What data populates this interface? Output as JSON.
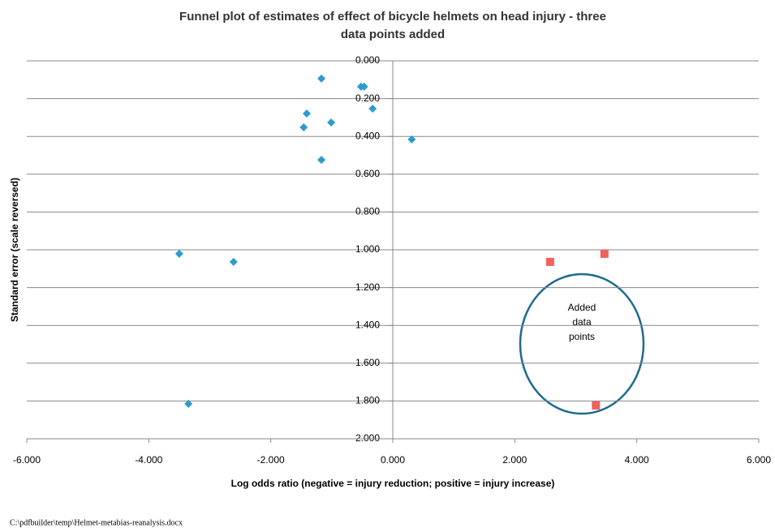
{
  "chart_data": {
    "type": "scatter",
    "title": [
      "Funnel plot of estimates of effect  of bicycle helmets on head injury - three",
      "data points added"
    ],
    "x_label": "Log odds ratio (negative = injury reduction; positive = injury increase)",
    "y_label": "Standard error (scale reversed)",
    "xlim": [
      -6,
      6
    ],
    "xticks": [
      {
        "value": -6,
        "label": "-6.000"
      },
      {
        "value": -4,
        "label": "-4.000"
      },
      {
        "value": -2,
        "label": "-2.000"
      },
      {
        "value": 0,
        "label": "0.000"
      },
      {
        "value": 2,
        "label": "2.000"
      },
      {
        "value": 4,
        "label": "4.000"
      },
      {
        "value": 6,
        "label": "6.000"
      }
    ],
    "ylim": [
      0,
      2
    ],
    "y_reversed": true,
    "yticks": [
      {
        "value": 0,
        "label": "0.000"
      },
      {
        "value": 0.2,
        "label": "0.200"
      },
      {
        "value": 0.4,
        "label": "0.400"
      },
      {
        "value": 0.6,
        "label": "0.600"
      },
      {
        "value": 0.8,
        "label": "0.800"
      },
      {
        "value": 1,
        "label": "1.000"
      },
      {
        "value": 1.2,
        "label": "1.200"
      },
      {
        "value": 1.4,
        "label": "1.400"
      },
      {
        "value": 1.6,
        "label": "1.600"
      },
      {
        "value": 1.8,
        "label": "1.800"
      },
      {
        "value": 2,
        "label": "2.000"
      }
    ],
    "grid": true,
    "series": [
      {
        "color": "#2e9bd0",
        "marker": "diamond",
        "x": [
          -1.17,
          -0.52,
          -0.47,
          -1.41,
          -0.33,
          -1.01,
          -1.46,
          0.31,
          -1.17,
          -3.5,
          -2.61,
          -3.35
        ],
        "values": [
          0.094,
          0.137,
          0.137,
          0.279,
          0.253,
          0.326,
          0.352,
          0.416,
          0.524,
          1.021,
          1.064,
          1.815
        ]
      },
      {
        "color": "#f0625d",
        "marker": "square",
        "x": [
          2.58,
          3.47,
          3.33
        ],
        "values": [
          1.064,
          1.021,
          1.824
        ]
      }
    ],
    "annotation": [
      "Added",
      "data",
      "points"
    ]
  },
  "footer": "C:\\pdfbuilder\\temp\\Helmet-metabias-reanalysis.docx"
}
